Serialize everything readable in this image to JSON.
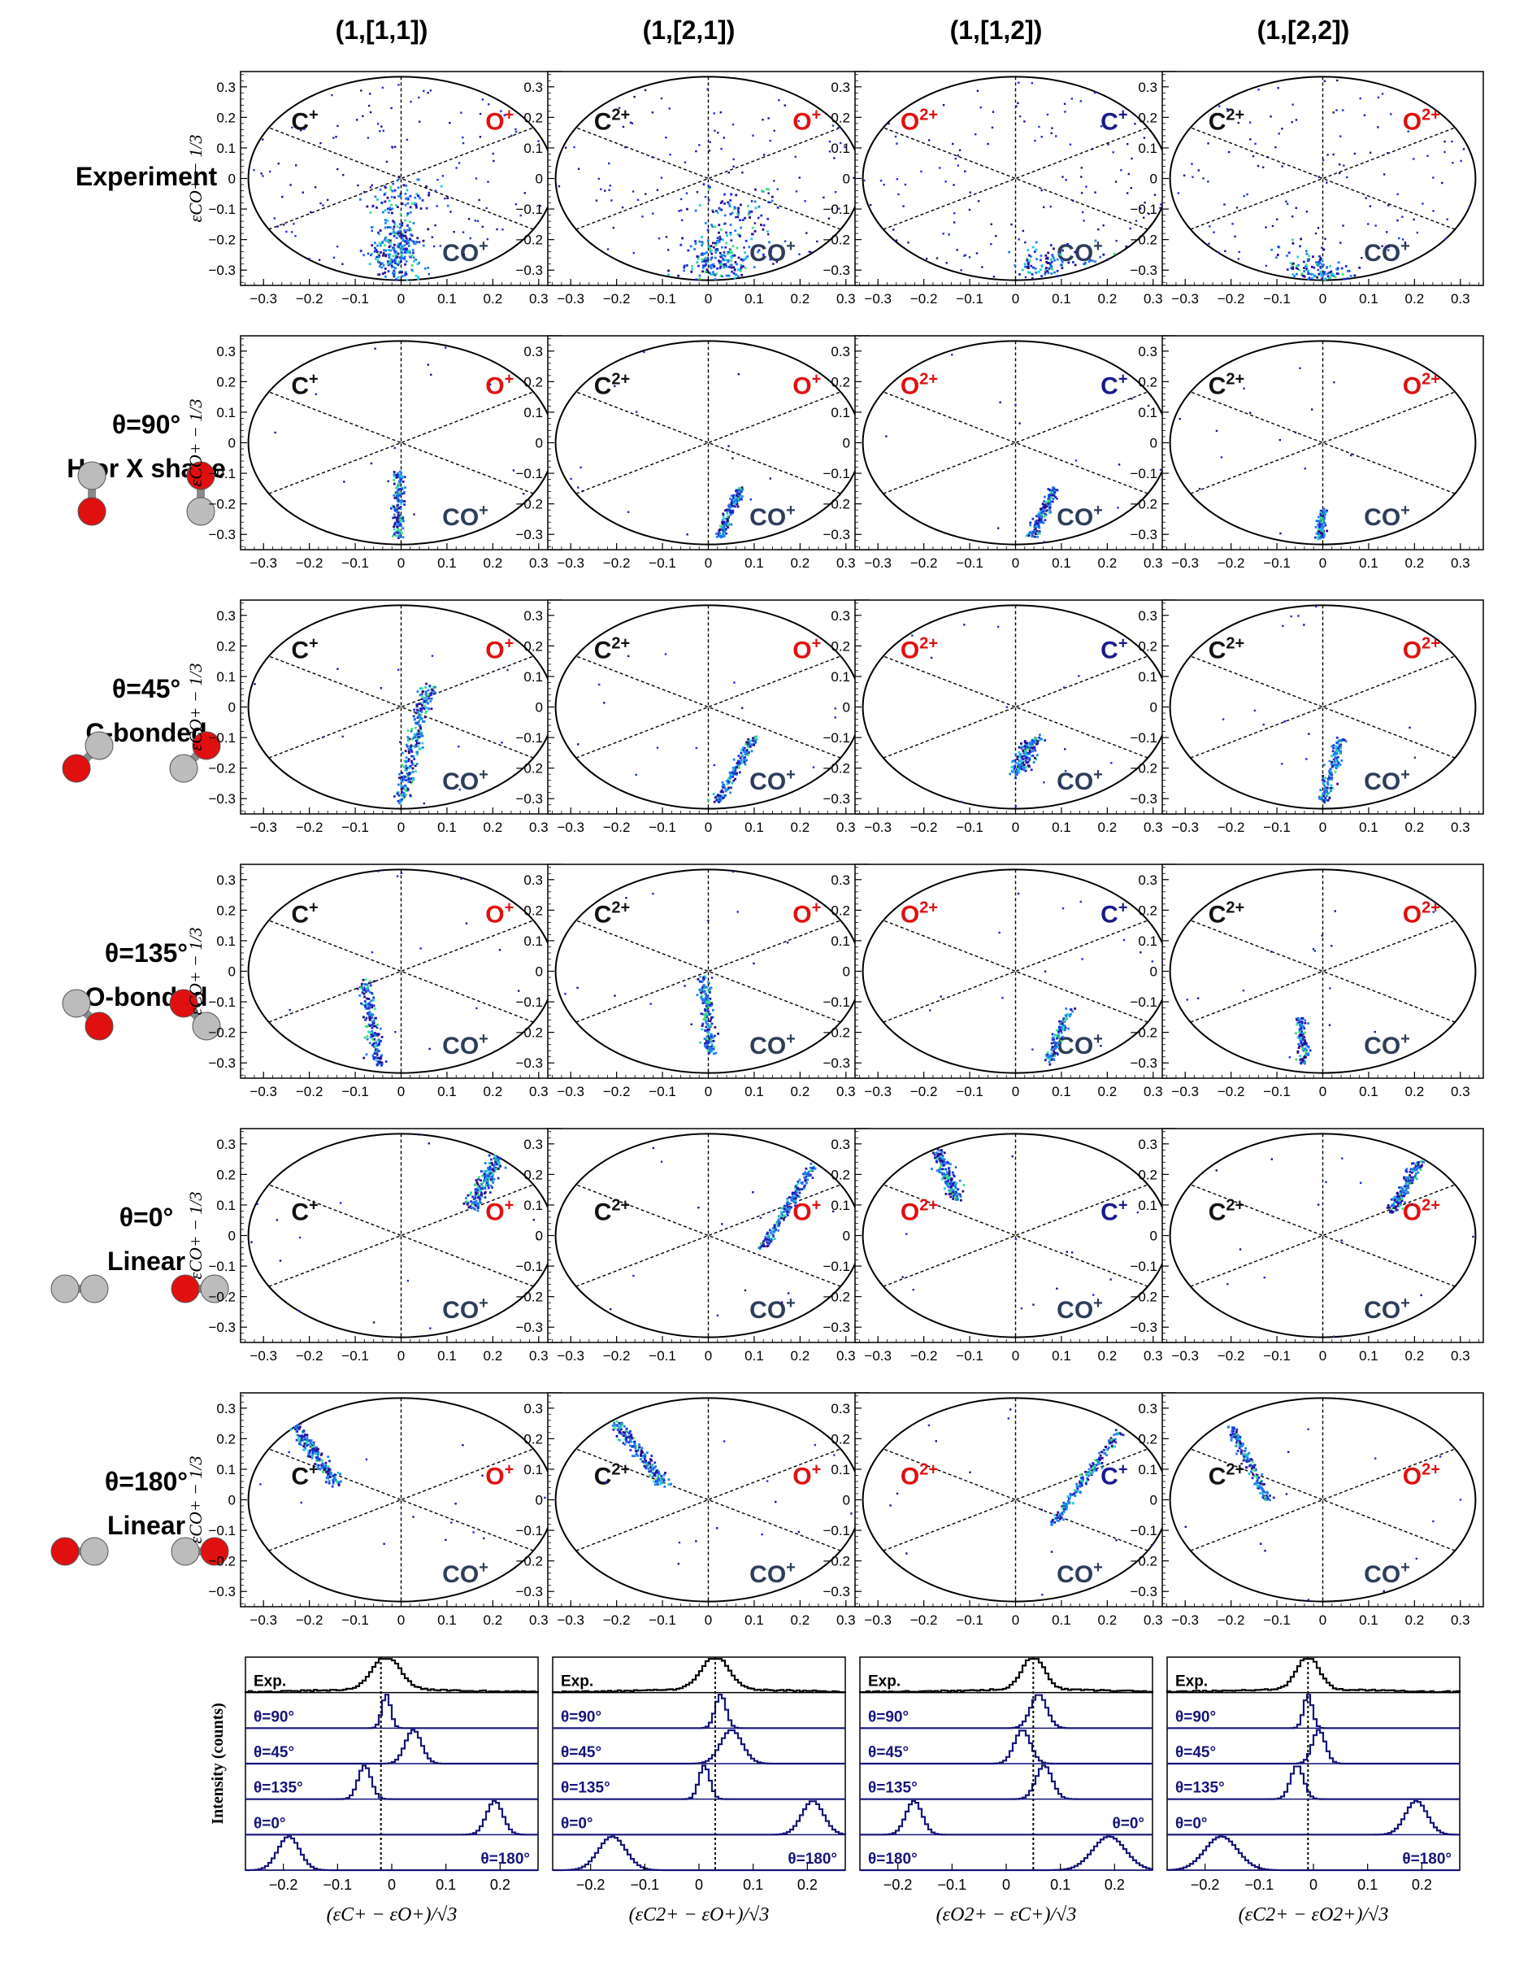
{
  "figure": {
    "columns": [
      {
        "title": "(1,[1,1])",
        "left_ion": "C",
        "left_charge": "+",
        "left_color": "#111111",
        "right_ion": "O",
        "right_charge": "+",
        "right_color": "#e01010",
        "bottom_ion": "CO",
        "bottom_charge": "+",
        "xlabel": "(εC+ − εO+)/√3",
        "peak_ref": -0.02
      },
      {
        "title": "(1,[2,1])",
        "left_ion": "C",
        "left_charge": "2+",
        "left_color": "#111111",
        "right_ion": "O",
        "right_charge": "+",
        "right_color": "#e01010",
        "bottom_ion": "CO",
        "bottom_charge": "+",
        "xlabel": "(εC2+ − εO+)/√3",
        "peak_ref": 0.03
      },
      {
        "title": "(1,[1,2])",
        "left_ion": "O",
        "left_charge": "2+",
        "left_color": "#e01010",
        "right_ion": "C",
        "right_charge": "+",
        "right_color": "#1a1a8c",
        "bottom_ion": "CO",
        "bottom_charge": "+",
        "xlabel": "(εO2+ − εC+)/√3",
        "peak_ref": 0.05
      },
      {
        "title": "(1,[2,2])",
        "left_ion": "C",
        "left_charge": "2+",
        "left_color": "#111111",
        "right_ion": "O",
        "right_charge": "2+",
        "right_color": "#e01010",
        "bottom_ion": "CO",
        "bottom_charge": "+",
        "xlabel": "(εC2+ − εO2+)/√3",
        "peak_ref": -0.01
      }
    ],
    "rows": [
      {
        "title": "Experiment",
        "subtitle": ""
      },
      {
        "title": "θ=90°",
        "subtitle": "H or X shape"
      },
      {
        "title": "θ=45°",
        "subtitle": "C-bonded"
      },
      {
        "title": "θ=135°",
        "subtitle": "O-bonded"
      },
      {
        "title": "θ=0°",
        "subtitle": "Linear"
      },
      {
        "title": "θ=180°",
        "subtitle": "Linear"
      }
    ],
    "dalitz_ylabel": "εCO+ − 1/3",
    "hist_ylabel": "Intensity (counts)",
    "hist_labels": [
      "Exp.",
      "θ=90°",
      "θ=45°",
      "θ=135°",
      "θ=0°",
      "θ=180°"
    ]
  },
  "chart_data": {
    "type": "scatter",
    "description_type": "dalitz-density-grid",
    "axes": {
      "x_range": [
        -0.35,
        0.35
      ],
      "y_range": [
        -0.35,
        0.35
      ],
      "x_ticks": [
        -0.3,
        -0.2,
        -0.1,
        0,
        0.1,
        0.2,
        0.3
      ],
      "y_ticks": [
        -0.3,
        -0.2,
        -0.1,
        0,
        0.1,
        0.2,
        0.3
      ],
      "x_tick_labels": [
        "−0.3",
        "−0.2",
        "−0.1",
        "0",
        "0.1",
        "0.2",
        "0.3"
      ],
      "y_tick_labels": [
        "−0.3",
        "−0.2",
        "−0.1",
        "0",
        "0.1",
        "0.2",
        "0.3"
      ],
      "circle_radius": 0.333
    },
    "clusters": [
      [
        {
          "x": -0.01,
          "y": -0.24,
          "sx": 0.025,
          "sy": 0.06,
          "n": 280
        },
        {
          "x": 0.0,
          "y": -0.07,
          "sx": 0.04,
          "sy": 0.03,
          "n": 80
        }
      ],
      [
        {
          "x": 0.02,
          "y": -0.27,
          "sx": 0.04,
          "sy": 0.04,
          "n": 200
        },
        {
          "x": 0.06,
          "y": -0.12,
          "sx": 0.04,
          "sy": 0.05,
          "n": 90
        }
      ],
      [
        {
          "x": 0.06,
          "y": -0.28,
          "sx": 0.03,
          "sy": 0.03,
          "n": 90
        },
        {
          "x": 0.2,
          "y": -0.27,
          "sx": 0.05,
          "sy": 0.03,
          "n": 40
        }
      ],
      [
        {
          "x": -0.01,
          "y": -0.31,
          "sx": 0.03,
          "sy": 0.02,
          "n": 110
        },
        {
          "x": -0.06,
          "y": -0.25,
          "sx": 0.04,
          "sy": 0.03,
          "n": 30
        }
      ],
      [
        {
          "x0": -0.005,
          "y0": -0.31,
          "x1": -0.005,
          "y1": -0.1,
          "w": 0.012,
          "n": 160
        }
      ],
      [
        {
          "x0": 0.025,
          "y0": -0.31,
          "x1": 0.07,
          "y1": -0.15,
          "w": 0.012,
          "n": 160
        }
      ],
      [
        {
          "x0": 0.035,
          "y0": -0.31,
          "x1": 0.085,
          "y1": -0.15,
          "w": 0.012,
          "n": 160
        }
      ],
      [
        {
          "x0": -0.005,
          "y0": -0.31,
          "x1": 0.0,
          "y1": -0.22,
          "w": 0.01,
          "n": 110
        }
      ],
      [
        {
          "x0": 0.0,
          "y0": -0.31,
          "x1": 0.06,
          "y1": 0.07,
          "w": 0.018,
          "n": 260
        }
      ],
      [
        {
          "x0": 0.02,
          "y0": -0.31,
          "x1": 0.1,
          "y1": -0.1,
          "w": 0.014,
          "n": 170
        }
      ],
      [
        {
          "x0": 0.0,
          "y0": -0.22,
          "x1": 0.04,
          "y1": -0.1,
          "w": 0.02,
          "n": 180
        }
      ],
      [
        {
          "x0": 0.0,
          "y0": -0.31,
          "x1": 0.04,
          "y1": -0.1,
          "w": 0.012,
          "n": 140
        }
      ],
      [
        {
          "x0": -0.05,
          "y0": -0.31,
          "x1": -0.08,
          "y1": -0.03,
          "w": 0.014,
          "n": 190
        }
      ],
      [
        {
          "x0": 0.005,
          "y0": -0.27,
          "x1": -0.01,
          "y1": -0.02,
          "w": 0.014,
          "n": 180
        }
      ],
      [
        {
          "x0": 0.07,
          "y0": -0.3,
          "x1": 0.12,
          "y1": -0.12,
          "w": 0.012,
          "n": 120
        }
      ],
      [
        {
          "x0": -0.04,
          "y0": -0.3,
          "x1": -0.05,
          "y1": -0.15,
          "w": 0.012,
          "n": 110
        }
      ],
      [
        {
          "x0": 0.15,
          "y0": 0.09,
          "x1": 0.22,
          "y1": 0.28,
          "w": 0.02,
          "n": 230
        }
      ],
      [
        {
          "x0": 0.12,
          "y0": -0.04,
          "x1": 0.23,
          "y1": 0.23,
          "w": 0.012,
          "n": 200
        }
      ],
      [
        {
          "x0": -0.17,
          "y0": 0.28,
          "x1": -0.13,
          "y1": 0.12,
          "w": 0.018,
          "n": 170
        }
      ],
      [
        {
          "x0": 0.21,
          "y0": 0.24,
          "x1": 0.15,
          "y1": 0.08,
          "w": 0.014,
          "n": 170
        }
      ],
      [
        {
          "x0": -0.24,
          "y0": 0.26,
          "x1": -0.14,
          "y1": 0.05,
          "w": 0.018,
          "n": 230
        }
      ],
      [
        {
          "x0": -0.2,
          "y0": 0.25,
          "x1": -0.1,
          "y1": 0.05,
          "w": 0.016,
          "n": 200
        }
      ],
      [
        {
          "x0": 0.08,
          "y0": -0.08,
          "x1": 0.23,
          "y1": 0.23,
          "w": 0.012,
          "n": 190
        }
      ],
      [
        {
          "x0": -0.2,
          "y0": 0.24,
          "x1": -0.12,
          "y1": 0.0,
          "w": 0.012,
          "n": 160
        }
      ]
    ],
    "histograms": [
      {
        "x_range": [
          -0.27,
          0.27
        ],
        "x_ticks": [
          -0.2,
          -0.1,
          0,
          0.1,
          0.2
        ],
        "x_tick_labels": [
          "−0.2",
          "−0.1",
          "0",
          "0.1",
          "0.2"
        ],
        "peaks": [
          [
            -0.01
          ],
          [
            -0.01
          ],
          [
            0.04
          ],
          [
            -0.05
          ],
          [
            0.19
          ],
          [
            -0.19
          ]
        ],
        "widths": [
          0.025,
          0.008,
          0.015,
          0.012,
          0.015,
          0.02
        ]
      },
      {
        "x_range": [
          -0.27,
          0.27
        ],
        "x_ticks": [
          -0.2,
          -0.1,
          0,
          0.1,
          0.2
        ],
        "x_tick_labels": [
          "−0.2",
          "−0.1",
          "0",
          "0.1",
          "0.2"
        ],
        "peaks": [
          [
            0.03
          ],
          [
            0.04
          ],
          [
            0.06
          ],
          [
            0.01
          ],
          [
            0.21
          ],
          [
            -0.16
          ]
        ],
        "widths": [
          0.025,
          0.01,
          0.02,
          0.01,
          0.02,
          0.025
        ]
      },
      {
        "x_range": [
          -0.27,
          0.27
        ],
        "x_ticks": [
          -0.2,
          -0.1,
          0,
          0.1,
          0.2
        ],
        "x_tick_labels": [
          "−0.2",
          "−0.1",
          "0",
          "0.1",
          "0.2"
        ],
        "peaks": [
          [
            0.05
          ],
          [
            0.06
          ],
          [
            0.03
          ],
          [
            0.07
          ],
          [
            -0.17
          ],
          [
            0.19
          ]
        ],
        "widths": [
          0.02,
          0.015,
          0.015,
          0.015,
          0.015,
          0.03
        ]
      },
      {
        "x_range": [
          -0.27,
          0.27
        ],
        "x_ticks": [
          -0.2,
          -0.1,
          0,
          0.1,
          0.2
        ],
        "x_tick_labels": [
          "−0.2",
          "−0.1",
          "0",
          "0.1",
          "0.2"
        ],
        "peaks": [
          [
            -0.01
          ],
          [
            -0.01
          ],
          [
            0.01
          ],
          [
            -0.03
          ],
          [
            0.19
          ],
          [
            -0.17
          ]
        ],
        "widths": [
          0.02,
          0.008,
          0.012,
          0.012,
          0.02,
          0.03
        ]
      }
    ],
    "series_names": [
      "Exp.",
      "θ=90°",
      "θ=45°",
      "θ=135°",
      "θ=0°",
      "θ=180°"
    ],
    "colors": {
      "experiment": "#000000",
      "simulation": "#15157a",
      "carbon": "#bcbcbc",
      "oxygen": "#e01010"
    }
  }
}
